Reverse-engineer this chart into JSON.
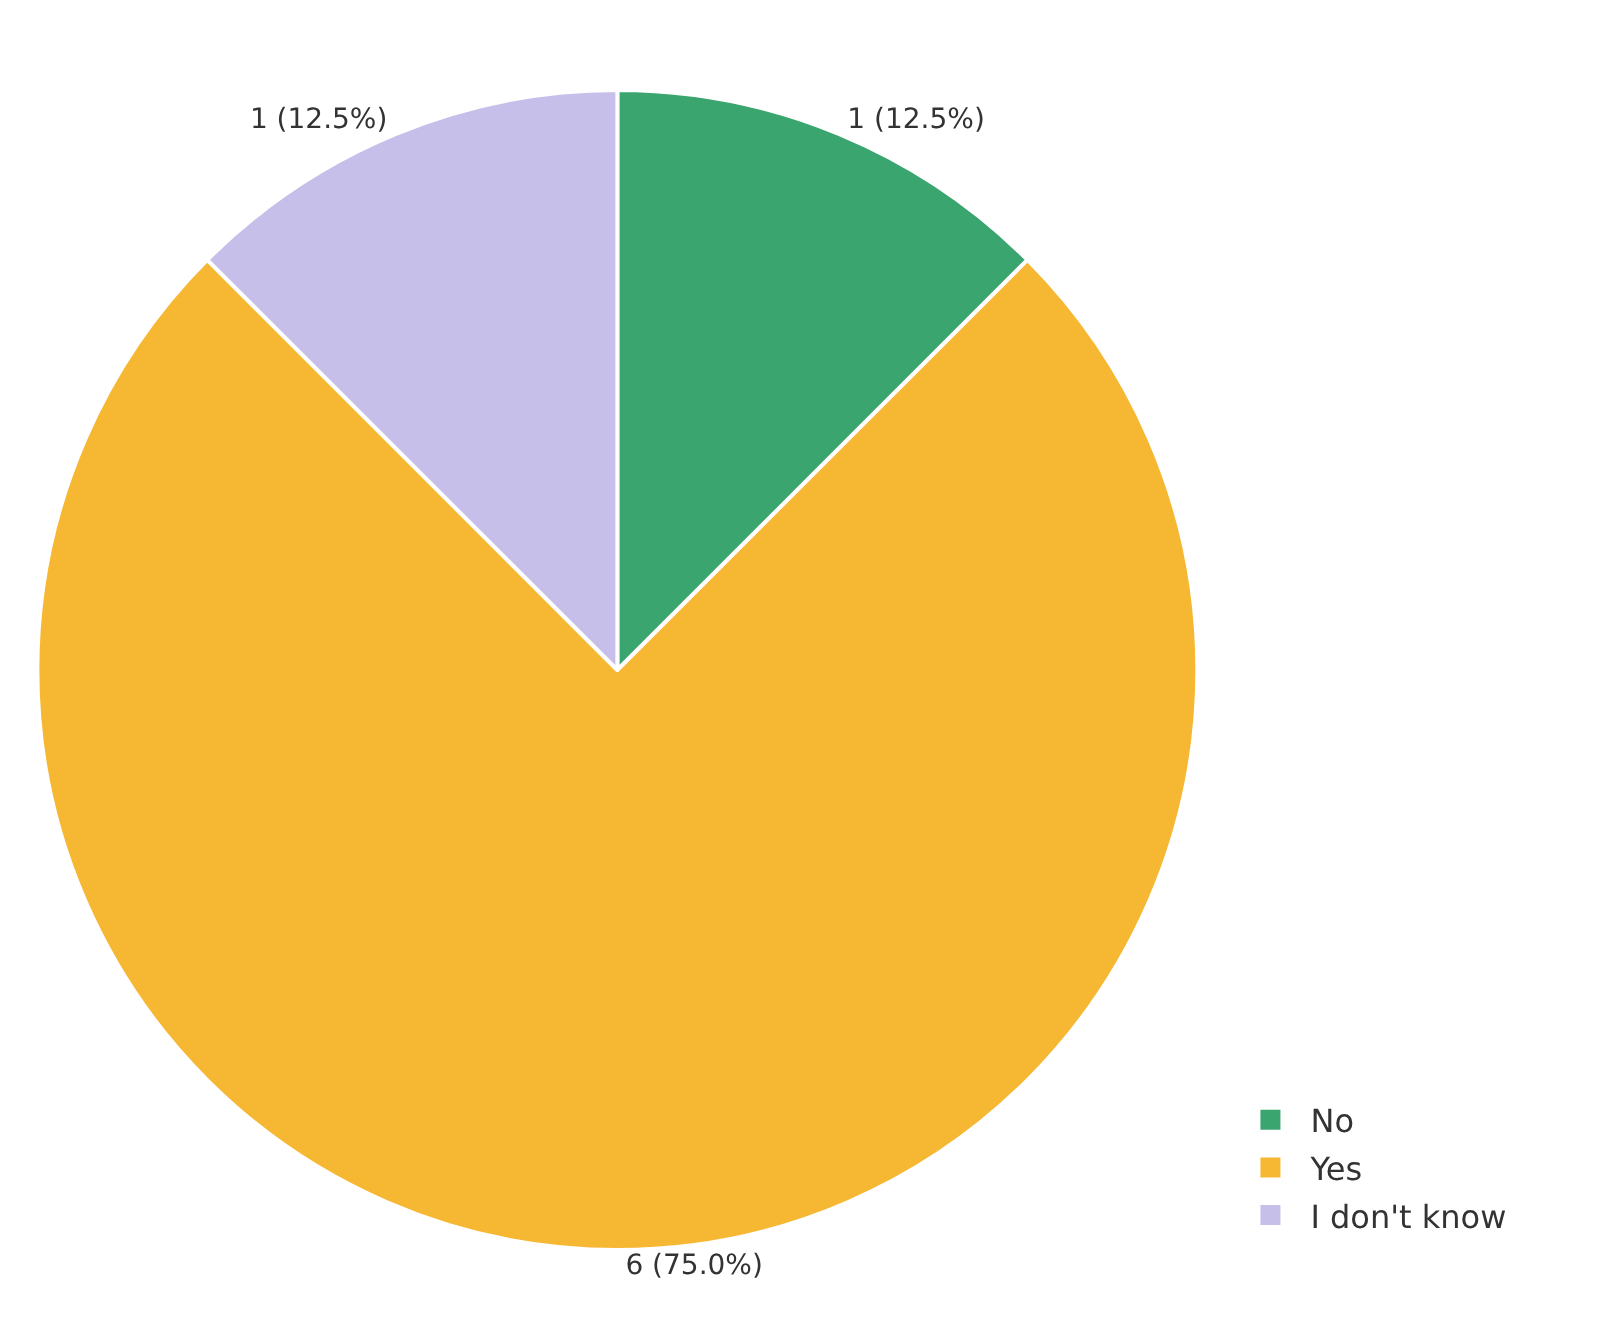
{
  "chart_data": {
    "type": "pie",
    "categories": [
      "No",
      "Yes",
      "I don't know"
    ],
    "values": [
      1,
      6,
      1
    ],
    "colors": [
      "#3aa56f",
      "#f6b733",
      "#c5bfe9"
    ],
    "value_labels": [
      "1 (12.5%)",
      "6 (75.0%)",
      "1 (12.5%)"
    ],
    "legend": "bottom right"
  }
}
